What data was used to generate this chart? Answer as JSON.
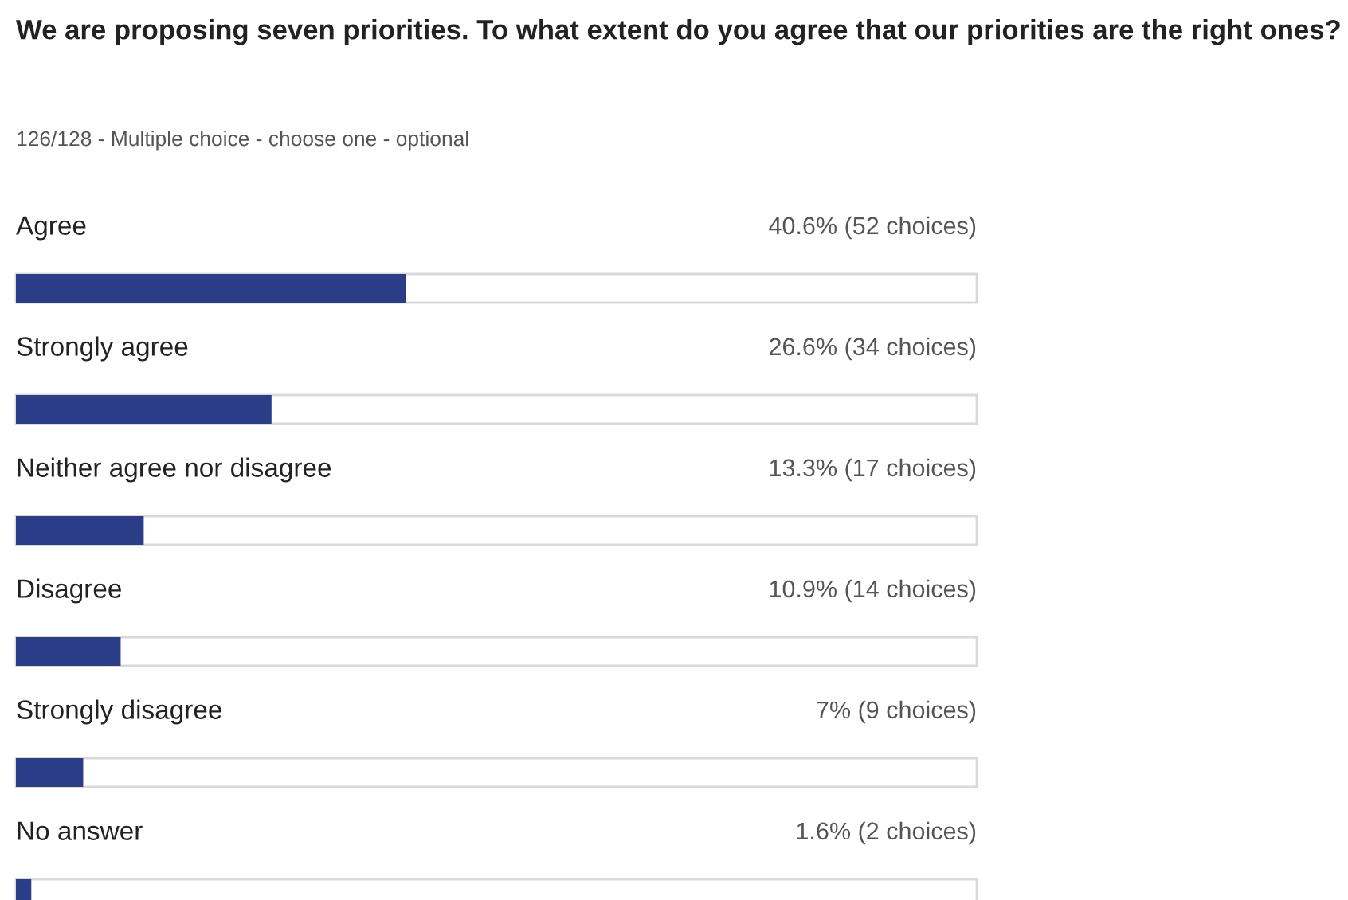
{
  "chart_data": {
    "type": "bar",
    "orientation": "horizontal",
    "title": "We are proposing seven priorities. To what extent do you agree that our priorities are the right ones?",
    "subtitle": "126/128 - Multiple choice - choose one - optional",
    "categories": [
      "Agree",
      "Strongly agree",
      "Neither agree nor disagree",
      "Disagree",
      "Strongly disagree",
      "No answer"
    ],
    "values": [
      40.6,
      26.6,
      13.3,
      10.9,
      7,
      1.6
    ],
    "value_labels": [
      "40.6% (52 choices)",
      "26.6% (34 choices)",
      "13.3% (17 choices)",
      "10.9% (14 choices)",
      "7% (9 choices)",
      "1.6% (2 choices)"
    ],
    "color": "#2b3d86",
    "xlim": [
      0,
      100
    ]
  }
}
